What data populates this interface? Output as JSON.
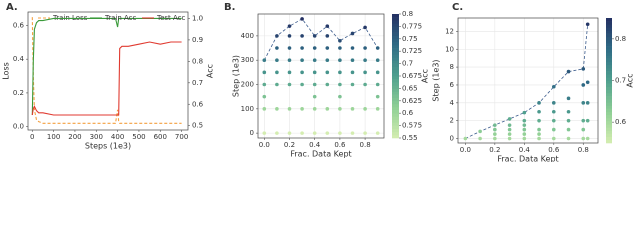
{
  "chart_data": [
    {
      "type": "line",
      "label": "A.",
      "xlabel": "Steps (1e3)",
      "ylabel": "Loss",
      "y2label": "Acc",
      "xlim": [
        -20,
        730
      ],
      "xticks": [
        0,
        100,
        200,
        300,
        400,
        500,
        600,
        700
      ],
      "ylim": [
        -0.02,
        0.68
      ],
      "yticks": [
        {
          "value": 0,
          "label": "0.0"
        },
        0.2,
        0.4,
        0.6
      ],
      "y2lim": [
        0.48,
        1.03
      ],
      "y2ticks": [
        0.5,
        0.6,
        0.7,
        0.8,
        0.9,
        {
          "value": 1,
          "label": "1.0"
        }
      ],
      "grid": false,
      "legend": "top",
      "x": [
        0,
        5,
        10,
        20,
        30,
        50,
        100,
        200,
        300,
        390,
        400,
        405,
        410,
        420,
        450,
        500,
        550,
        600,
        650,
        700
      ],
      "series": [
        {
          "name": "Train Loss",
          "color": "#f4a040",
          "linestyle": "dashed",
          "values": [
            0.65,
            0.3,
            0.1,
            0.04,
            0.03,
            0.02,
            0.02,
            0.02,
            0.02,
            0.02,
            0.1,
            0.03,
            0.02,
            0.02,
            0.02,
            0.02,
            0.02,
            0.02,
            0.02,
            0.02
          ]
        },
        {
          "name": "Train Acc",
          "color": "#3a9a3a",
          "linestyle": "solid",
          "axis": "y2",
          "values": [
            0.55,
            0.8,
            0.95,
            0.98,
            0.99,
            0.99,
            1.0,
            1.0,
            1.0,
            1.0,
            0.96,
            1.0,
            1.0,
            1.0,
            1.0,
            1.0,
            1.0,
            1.0,
            1.0,
            1.0
          ]
        },
        {
          "name": "Test Acc",
          "color": "#e03a30",
          "linestyle": "solid",
          "axis": "y2",
          "values": [
            0.55,
            0.58,
            0.59,
            0.57,
            0.56,
            0.56,
            0.55,
            0.55,
            0.55,
            0.55,
            0.55,
            0.55,
            0.86,
            0.87,
            0.87,
            0.88,
            0.89,
            0.88,
            0.89,
            0.89
          ]
        }
      ]
    },
    {
      "type": "scatter",
      "label": "B.",
      "xlabel": "Frac. Data Kept",
      "ylabel": "Step (1e3)",
      "colorbar_label": "Acc",
      "xlim": [
        -0.05,
        0.95
      ],
      "xticks": [
        {
          "value": 0,
          "label": "0.0"
        },
        0.2,
        0.4,
        0.6,
        0.8
      ],
      "ylim": [
        -20,
        490
      ],
      "yticks": [
        0,
        100,
        200,
        300,
        400
      ],
      "clim": [
        0.55,
        0.8
      ],
      "cticks": [
        0.55,
        0.575,
        0.6,
        0.625,
        0.65,
        0.675,
        0.7,
        0.725,
        0.75,
        0.775,
        0.8
      ],
      "colormap": [
        "#d4edb0",
        "#8fcf95",
        "#4fa08e",
        "#2f6c86",
        "#232f62"
      ],
      "grid": true,
      "x": [
        0,
        0,
        0,
        0,
        0,
        0,
        0.1,
        0.1,
        0.1,
        0.1,
        0.1,
        0.1,
        0.1,
        0.2,
        0.2,
        0.2,
        0.2,
        0.2,
        0.2,
        0.2,
        0.2,
        0.3,
        0.3,
        0.3,
        0.3,
        0.3,
        0.3,
        0.3,
        0.3,
        0.4,
        0.4,
        0.4,
        0.4,
        0.4,
        0.4,
        0.4,
        0.4,
        0.5,
        0.5,
        0.5,
        0.5,
        0.5,
        0.5,
        0.5,
        0.5,
        0.6,
        0.6,
        0.6,
        0.6,
        0.6,
        0.6,
        0.6,
        0.6,
        0.7,
        0.7,
        0.7,
        0.7,
        0.7,
        0.7,
        0.7,
        0.8,
        0.8,
        0.8,
        0.8,
        0.8,
        0.8,
        0.8,
        0.9,
        0.9,
        0.9,
        0.9,
        0.9,
        0.9,
        0.9
      ],
      "y": [
        0,
        100,
        150,
        200,
        250,
        300,
        0,
        100,
        200,
        250,
        300,
        350,
        400,
        0,
        100,
        200,
        250,
        300,
        350,
        400,
        440,
        0,
        100,
        200,
        250,
        300,
        350,
        400,
        470,
        0,
        100,
        150,
        200,
        250,
        300,
        350,
        400,
        0,
        100,
        200,
        250,
        300,
        350,
        400,
        440,
        0,
        100,
        150,
        200,
        250,
        300,
        350,
        380,
        0,
        100,
        200,
        250,
        300,
        350,
        410,
        0,
        100,
        200,
        250,
        300,
        350,
        435,
        0,
        100,
        150,
        200,
        250,
        300,
        350
      ],
      "acc": [
        0.55,
        0.6,
        0.63,
        0.66,
        0.69,
        0.72,
        0.55,
        0.6,
        0.66,
        0.69,
        0.72,
        0.75,
        0.78,
        0.55,
        0.6,
        0.66,
        0.69,
        0.72,
        0.75,
        0.78,
        0.79,
        0.55,
        0.6,
        0.66,
        0.69,
        0.72,
        0.75,
        0.78,
        0.8,
        0.55,
        0.6,
        0.63,
        0.66,
        0.69,
        0.72,
        0.75,
        0.78,
        0.55,
        0.6,
        0.66,
        0.69,
        0.72,
        0.75,
        0.78,
        0.79,
        0.55,
        0.6,
        0.63,
        0.66,
        0.69,
        0.72,
        0.75,
        0.77,
        0.55,
        0.6,
        0.66,
        0.69,
        0.72,
        0.75,
        0.78,
        0.55,
        0.6,
        0.66,
        0.69,
        0.72,
        0.75,
        0.79,
        0.55,
        0.6,
        0.63,
        0.66,
        0.69,
        0.72,
        0.75
      ],
      "line": {
        "color": "#3b5b8c",
        "linestyle": "dashed",
        "x": [
          0,
          0.1,
          0.2,
          0.3,
          0.4,
          0.5,
          0.6,
          0.7,
          0.8,
          0.9
        ],
        "y": [
          300,
          400,
          440,
          470,
          400,
          440,
          380,
          410,
          435,
          350
        ]
      }
    },
    {
      "type": "scatter",
      "label": "C.",
      "xlabel": "Frac. Data Kept",
      "ylabel": "Step (1e3)",
      "colorbar_label": "Acc",
      "xlim": [
        -0.05,
        0.9
      ],
      "xticks": [
        {
          "value": 0,
          "label": "0.0"
        },
        0.2,
        0.4,
        0.6,
        0.8
      ],
      "ylim": [
        -0.5,
        13.5
      ],
      "yticks": [
        0,
        2,
        4,
        6,
        8,
        10,
        12
      ],
      "clim": [
        0.55,
        0.85
      ],
      "cticks": [
        0.6,
        0.7,
        0.8
      ],
      "colormap": [
        "#d4edb0",
        "#8fcf95",
        "#4fa08e",
        "#2f6c86",
        "#232f62"
      ],
      "grid": true,
      "x": [
        0,
        0.1,
        0.1,
        0.2,
        0.2,
        0.2,
        0.2,
        0.3,
        0.3,
        0.3,
        0.3,
        0.3,
        0.4,
        0.4,
        0.4,
        0.4,
        0.4,
        0.4,
        0.5,
        0.5,
        0.5,
        0.5,
        0.5,
        0.5,
        0.6,
        0.6,
        0.6,
        0.6,
        0.6,
        0.6,
        0.7,
        0.7,
        0.7,
        0.7,
        0.7,
        0.7,
        0.8,
        0.8,
        0.8,
        0.8,
        0.8,
        0.8,
        0.83,
        0.83,
        0.83,
        0.83,
        0.83
      ],
      "y": [
        0,
        0,
        0.8,
        0,
        0.5,
        1,
        1.5,
        0,
        0.5,
        1,
        1.5,
        2.2,
        0,
        0.5,
        1,
        1.5,
        2,
        2.9,
        0,
        0.5,
        1,
        2,
        3,
        4,
        0,
        1,
        2,
        3,
        4,
        5.8,
        0,
        1,
        2,
        3,
        4.5,
        7.5,
        0,
        1,
        2,
        4,
        6,
        7.8,
        0,
        2,
        4,
        6.3,
        12.8
      ],
      "acc": [
        0.6,
        0.6,
        0.63,
        0.6,
        0.62,
        0.64,
        0.66,
        0.6,
        0.62,
        0.64,
        0.66,
        0.68,
        0.6,
        0.62,
        0.64,
        0.66,
        0.68,
        0.7,
        0.6,
        0.62,
        0.64,
        0.68,
        0.71,
        0.74,
        0.6,
        0.64,
        0.68,
        0.71,
        0.74,
        0.77,
        0.6,
        0.64,
        0.68,
        0.71,
        0.75,
        0.8,
        0.6,
        0.64,
        0.68,
        0.74,
        0.78,
        0.8,
        0.6,
        0.68,
        0.74,
        0.78,
        0.84
      ],
      "line": {
        "color": "#3b5b8c",
        "linestyle": "dashed",
        "x": [
          0,
          0.1,
          0.2,
          0.3,
          0.4,
          0.5,
          0.6,
          0.7,
          0.8,
          0.83
        ],
        "y": [
          0,
          0.8,
          1.5,
          2.2,
          2.9,
          4,
          5.8,
          7.5,
          7.8,
          12.8
        ]
      }
    }
  ]
}
